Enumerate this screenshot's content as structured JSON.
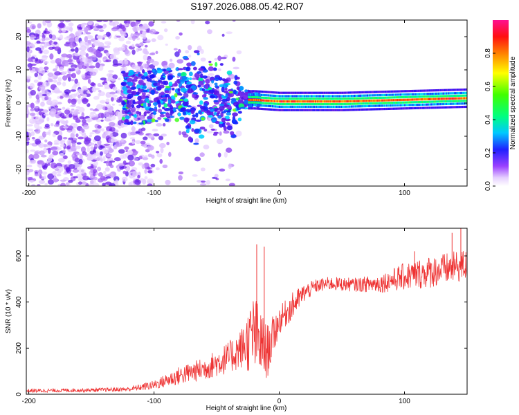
{
  "title": "S197.2026.088.05.42.R07",
  "chart_data": [
    {
      "type": "heatmap",
      "xlabel": "Height of straight line (km)",
      "ylabel": "Frequency (Hz)",
      "xlim": [
        -202,
        150
      ],
      "ylim": [
        -25,
        25
      ],
      "xticks": [
        -200,
        -100,
        0,
        100
      ],
      "yticks": [
        -20,
        -10,
        0,
        10,
        20
      ],
      "colorbar": {
        "label": "Normalized spectral amplitude",
        "range": [
          0,
          1
        ],
        "ticks": [
          0.0,
          0.2,
          0.4,
          0.6,
          0.8
        ],
        "tick_labels": [
          "0.0",
          "0.2",
          "0.4",
          "0.6",
          "0.8"
        ],
        "colors": [
          "#ffffff",
          "#e0c8ff",
          "#8a2be2",
          "#0000ff",
          "#00ffff",
          "#00ff00",
          "#ffff00",
          "#ff8000",
          "#ff0000",
          "#ff00aa"
        ]
      },
      "ridge": [
        {
          "x": -120,
          "freq": 1.5
        },
        {
          "x": -90,
          "freq": 2.5
        },
        {
          "x": -60,
          "freq": 3
        },
        {
          "x": -40,
          "freq": 1
        },
        {
          "x": -20,
          "freq": 1
        },
        {
          "x": 0,
          "freq": 0.5
        },
        {
          "x": 50,
          "freq": 0.5
        },
        {
          "x": 100,
          "freq": 1
        },
        {
          "x": 150,
          "freq": 1.5
        }
      ],
      "description_regions": {
        "noise_scatter_x": [
          -202,
          -100
        ],
        "tonal_line_x": [
          -20,
          150
        ]
      }
    },
    {
      "type": "line",
      "xlabel": "Height of straight line (km)",
      "ylabel": "SNR (10 * v/v)",
      "xlim": [
        -202,
        150
      ],
      "ylim": [
        0,
        720
      ],
      "xticks": [
        -200,
        -100,
        0,
        100
      ],
      "yticks": [
        0,
        200,
        400,
        600
      ],
      "color": "#ee3333",
      "envelope": {
        "x": [
          -202,
          -150,
          -120,
          -100,
          -80,
          -60,
          -40,
          -30,
          -20,
          -10,
          0,
          10,
          20,
          30,
          40,
          60,
          80,
          100,
          120,
          150
        ],
        "mean": [
          15,
          18,
          22,
          40,
          80,
          110,
          160,
          200,
          260,
          180,
          320,
          380,
          440,
          470,
          480,
          475,
          480,
          510,
          530,
          560
        ],
        "spread": [
          8,
          8,
          10,
          20,
          40,
          50,
          70,
          90,
          180,
          120,
          60,
          60,
          40,
          30,
          30,
          30,
          40,
          60,
          70,
          70
        ]
      },
      "spikes": [
        {
          "x": -18,
          "y": 650
        },
        {
          "x": -12,
          "y": 640
        },
        {
          "x": 108,
          "y": 620
        },
        {
          "x": 145,
          "y": 720
        },
        {
          "x": 138,
          "y": 700
        }
      ]
    }
  ]
}
